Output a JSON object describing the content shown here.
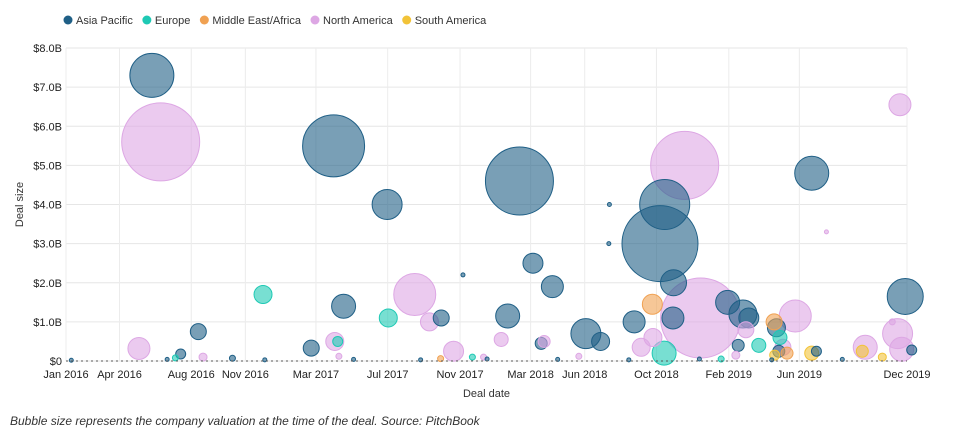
{
  "caption": "Bubble size represents the company valuation at the time of the deal. Source: PitchBook",
  "chart_data": {
    "type": "scatter",
    "subtype": "bubble",
    "xlabel": "Deal date",
    "ylabel": "Deal size",
    "x_ticks": [
      "Jan 2016",
      "Apr 2016",
      "Aug 2016",
      "Nov 2016",
      "Mar 2017",
      "Jul 2017",
      "Nov 2017",
      "Mar 2018",
      "Jun 2018",
      "Oct 2018",
      "Feb 2019",
      "Jun 2019",
      "Dec 2019"
    ],
    "x_tick_dates": [
      "2016-01-01",
      "2016-04-01",
      "2016-08-01",
      "2016-11-01",
      "2017-03-01",
      "2017-07-01",
      "2017-11-01",
      "2018-03-01",
      "2018-06-01",
      "2018-10-01",
      "2019-02-01",
      "2019-06-01",
      "2019-12-01"
    ],
    "xlim": [
      "2016-01-01",
      "2019-12-01"
    ],
    "y_ticks": [
      "$0",
      "$1.0B",
      "$2.0B",
      "$3.0B",
      "$4.0B",
      "$5.0B",
      "$6.0B",
      "$7.0B",
      "$8.0B"
    ],
    "y_tick_values": [
      0,
      1,
      2,
      3,
      4,
      5,
      6,
      7,
      8
    ],
    "y_unit": "billion USD",
    "ylim": [
      0,
      8
    ],
    "grid": true,
    "legend_position": "top-left",
    "series": [
      {
        "name": "Asia Pacific",
        "color": "#1f5f86",
        "points": [
          {
            "x": "2016-05-26",
            "y": 7.3,
            "size": 22
          },
          {
            "x": "2016-08-13",
            "y": 0.75,
            "size": 8
          },
          {
            "x": "2016-07-14",
            "y": 0.18,
            "size": 5
          },
          {
            "x": "2016-10-10",
            "y": 0.07,
            "size": 3
          },
          {
            "x": "2017-02-21",
            "y": 0.33,
            "size": 8
          },
          {
            "x": "2017-03-31",
            "y": 5.5,
            "size": 31
          },
          {
            "x": "2017-04-17",
            "y": 1.4,
            "size": 12
          },
          {
            "x": "2017-06-30",
            "y": 4.0,
            "size": 15
          },
          {
            "x": "2017-09-30",
            "y": 1.1,
            "size": 8
          },
          {
            "x": "2017-11-06",
            "y": 2.2,
            "size": 2
          },
          {
            "x": "2018-01-21",
            "y": 1.15,
            "size": 12
          },
          {
            "x": "2018-02-10",
            "y": 4.6,
            "size": 34
          },
          {
            "x": "2018-03-05",
            "y": 2.5,
            "size": 10
          },
          {
            "x": "2018-03-19",
            "y": 0.45,
            "size": 6
          },
          {
            "x": "2018-04-07",
            "y": 1.9,
            "size": 11
          },
          {
            "x": "2018-06-03",
            "y": 0.7,
            "size": 15
          },
          {
            "x": "2018-06-28",
            "y": 0.5,
            "size": 9
          },
          {
            "x": "2018-07-12",
            "y": 3.0,
            "size": 2
          },
          {
            "x": "2018-07-13",
            "y": 4.0,
            "size": 2
          },
          {
            "x": "2018-08-24",
            "y": 1.0,
            "size": 11
          },
          {
            "x": "2018-10-07",
            "y": 3.0,
            "size": 38
          },
          {
            "x": "2018-10-15",
            "y": 4.0,
            "size": 25
          },
          {
            "x": "2018-10-30",
            "y": 2.0,
            "size": 13
          },
          {
            "x": "2018-10-29",
            "y": 1.1,
            "size": 11
          },
          {
            "x": "2019-01-30",
            "y": 1.5,
            "size": 12
          },
          {
            "x": "2019-02-25",
            "y": 1.2,
            "size": 14
          },
          {
            "x": "2019-03-07",
            "y": 1.1,
            "size": 10
          },
          {
            "x": "2019-02-17",
            "y": 0.4,
            "size": 6
          },
          {
            "x": "2019-04-23",
            "y": 0.85,
            "size": 9
          },
          {
            "x": "2019-04-27",
            "y": 0.25,
            "size": 6
          },
          {
            "x": "2019-06-22",
            "y": 4.8,
            "size": 17
          },
          {
            "x": "2019-06-30",
            "y": 0.25,
            "size": 5
          },
          {
            "x": "2019-11-28",
            "y": 1.65,
            "size": 18
          },
          {
            "x": "2019-12-09",
            "y": 0.28,
            "size": 5
          },
          {
            "x": "2016-01-10",
            "y": 0.02,
            "size": 2
          },
          {
            "x": "2016-06-21",
            "y": 0.04,
            "size": 2
          },
          {
            "x": "2016-12-04",
            "y": 0.03,
            "size": 2
          },
          {
            "x": "2017-05-04",
            "y": 0.04,
            "size": 2
          },
          {
            "x": "2017-08-26",
            "y": 0.03,
            "size": 2
          },
          {
            "x": "2017-12-17",
            "y": 0.05,
            "size": 2
          },
          {
            "x": "2018-04-16",
            "y": 0.04,
            "size": 2
          },
          {
            "x": "2018-08-15",
            "y": 0.03,
            "size": 2
          },
          {
            "x": "2018-12-13",
            "y": 0.05,
            "size": 2
          },
          {
            "x": "2019-04-15",
            "y": 0.03,
            "size": 2
          },
          {
            "x": "2019-08-13",
            "y": 0.04,
            "size": 2
          }
        ]
      },
      {
        "name": "Europe",
        "color": "#1ec9b4",
        "points": [
          {
            "x": "2016-12-01",
            "y": 1.7,
            "size": 9
          },
          {
            "x": "2017-07-02",
            "y": 1.1,
            "size": 9
          },
          {
            "x": "2017-04-07",
            "y": 0.5,
            "size": 5
          },
          {
            "x": "2018-10-14",
            "y": 0.2,
            "size": 12
          },
          {
            "x": "2019-03-24",
            "y": 0.4,
            "size": 7
          },
          {
            "x": "2019-04-29",
            "y": 0.6,
            "size": 7
          },
          {
            "x": "2016-07-05",
            "y": 0.08,
            "size": 3
          },
          {
            "x": "2017-11-22",
            "y": 0.1,
            "size": 3
          },
          {
            "x": "2019-01-19",
            "y": 0.05,
            "size": 3
          }
        ]
      },
      {
        "name": "Middle East/Africa",
        "color": "#f0a152",
        "points": [
          {
            "x": "2018-09-24",
            "y": 1.45,
            "size": 10
          },
          {
            "x": "2019-04-19",
            "y": 1.0,
            "size": 8
          },
          {
            "x": "2019-05-11",
            "y": 0.2,
            "size": 6
          },
          {
            "x": "2017-09-29",
            "y": 0.06,
            "size": 3
          }
        ]
      },
      {
        "name": "North America",
        "color": "#dda7e4",
        "points": [
          {
            "x": "2016-06-10",
            "y": 5.6,
            "size": 39
          },
          {
            "x": "2016-05-04",
            "y": 0.32,
            "size": 11
          },
          {
            "x": "2017-04-02",
            "y": 0.5,
            "size": 9
          },
          {
            "x": "2017-08-16",
            "y": 1.7,
            "size": 21
          },
          {
            "x": "2017-09-10",
            "y": 1.0,
            "size": 9
          },
          {
            "x": "2017-10-21",
            "y": 0.25,
            "size": 10
          },
          {
            "x": "2018-01-10",
            "y": 0.55,
            "size": 7
          },
          {
            "x": "2018-03-24",
            "y": 0.5,
            "size": 6
          },
          {
            "x": "2018-09-25",
            "y": 0.6,
            "size": 9
          },
          {
            "x": "2018-09-05",
            "y": 0.35,
            "size": 9
          },
          {
            "x": "2018-11-18",
            "y": 5.0,
            "size": 34
          },
          {
            "x": "2018-12-15",
            "y": 1.1,
            "size": 40
          },
          {
            "x": "2019-03-02",
            "y": 0.8,
            "size": 8
          },
          {
            "x": "2019-05-25",
            "y": 1.15,
            "size": 16
          },
          {
            "x": "2019-05-04",
            "y": 0.35,
            "size": 8
          },
          {
            "x": "2019-07-17",
            "y": 3.3,
            "size": 2
          },
          {
            "x": "2019-09-21",
            "y": 0.35,
            "size": 12
          },
          {
            "x": "2019-11-19",
            "y": 6.55,
            "size": 11
          },
          {
            "x": "2019-11-15",
            "y": 0.7,
            "size": 15
          },
          {
            "x": "2019-11-22",
            "y": 0.3,
            "size": 12
          },
          {
            "x": "2019-11-06",
            "y": 1.0,
            "size": 3
          },
          {
            "x": "2016-08-21",
            "y": 0.1,
            "size": 4
          },
          {
            "x": "2017-04-09",
            "y": 0.12,
            "size": 3
          },
          {
            "x": "2017-12-11",
            "y": 0.1,
            "size": 3
          },
          {
            "x": "2018-05-22",
            "y": 0.12,
            "size": 3
          },
          {
            "x": "2019-02-13",
            "y": 0.15,
            "size": 4
          }
        ]
      },
      {
        "name": "South America",
        "color": "#f2c338",
        "points": [
          {
            "x": "2019-06-22",
            "y": 0.2,
            "size": 7
          },
          {
            "x": "2019-09-16",
            "y": 0.25,
            "size": 6
          },
          {
            "x": "2019-04-20",
            "y": 0.15,
            "size": 5
          },
          {
            "x": "2019-10-20",
            "y": 0.1,
            "size": 4
          }
        ]
      }
    ]
  }
}
